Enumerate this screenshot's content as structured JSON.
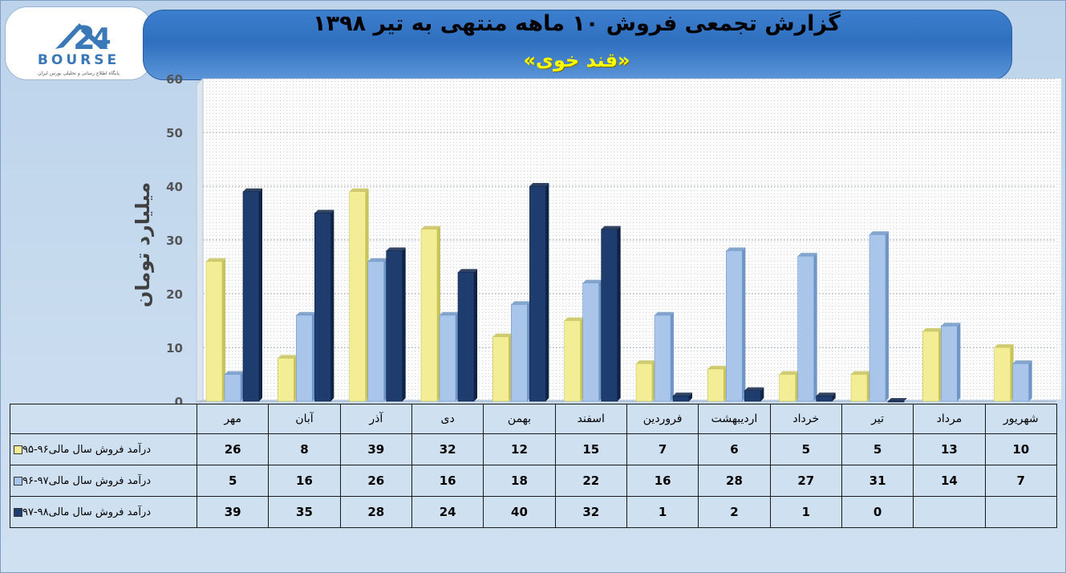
{
  "header": {
    "title": "گزارش تجمعی فروش ۱۰ ماهه منتهی به تیر ۱۳۹۸",
    "subtitle": "«قند خوی»"
  },
  "logo": {
    "name": "BOURSE",
    "caption": "پایگاه اطلاع رسانی و تحلیلی بورس ایران",
    "icon": "24-bourse-logo"
  },
  "colors": {
    "series1": "#f3ee96",
    "series2": "#a9c6ea",
    "series3": "#1e3c6e"
  },
  "chart_data": {
    "type": "bar",
    "title": "گزارش تجمعی فروش ۱۰ ماهه منتهی به تیر ۱۳۹۸",
    "subtitle": "«قند خوی»",
    "ylabel": "میلیارد تومان",
    "xlabel": "",
    "ylim": [
      0,
      60
    ],
    "yticks": [
      0,
      10,
      20,
      30,
      40,
      50,
      60
    ],
    "grid": true,
    "legend": "table-left",
    "categories": [
      "مهر",
      "آبان",
      "آذر",
      "دی",
      "بهمن",
      "اسفند",
      "فروردین",
      "اردیبهشت",
      "خرداد",
      "تیر",
      "مرداد",
      "شهریور"
    ],
    "series": [
      {
        "name": "درآمد فروش سال مالی۹۶-۹۵",
        "values": [
          26,
          8,
          39,
          32,
          12,
          15,
          7,
          6,
          5,
          5,
          13,
          10
        ]
      },
      {
        "name": "درآمد فروش سال مالی۹۷-۹۶",
        "values": [
          5,
          16,
          26,
          16,
          18,
          22,
          16,
          28,
          27,
          31,
          14,
          7
        ]
      },
      {
        "name": "درآمد فروش سال مالی۹۸-۹۷",
        "values": [
          39,
          35,
          28,
          24,
          40,
          32,
          1,
          2,
          1,
          0,
          null,
          null
        ]
      }
    ]
  }
}
